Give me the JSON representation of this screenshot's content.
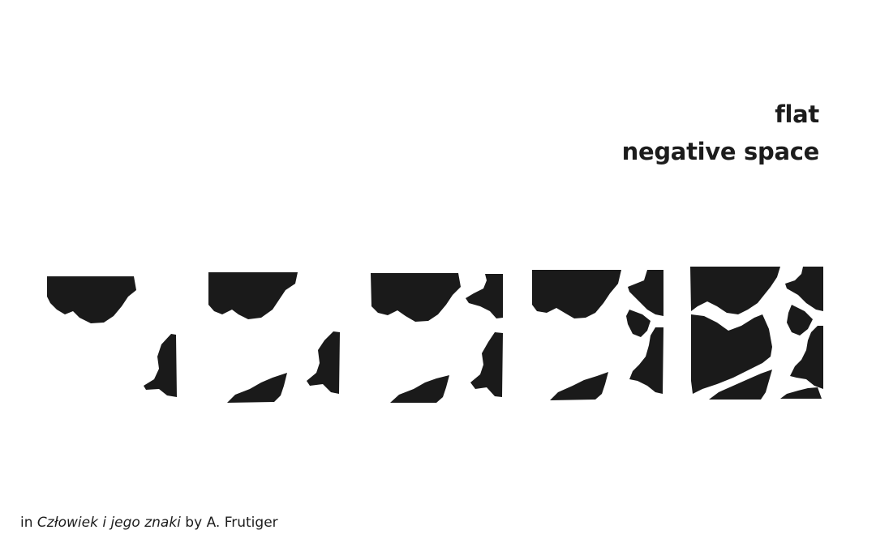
{
  "heading": {
    "line1": "flat",
    "line2": "negative space"
  },
  "caption": {
    "prefix": "in ",
    "book_title": "Człowiek i jego znaki",
    "suffix": " by A. Frutiger"
  },
  "figure": {
    "color": "#1a1a1a",
    "panels": [
      "stage-1",
      "stage-2",
      "stage-3",
      "stage-4",
      "stage-5"
    ]
  }
}
